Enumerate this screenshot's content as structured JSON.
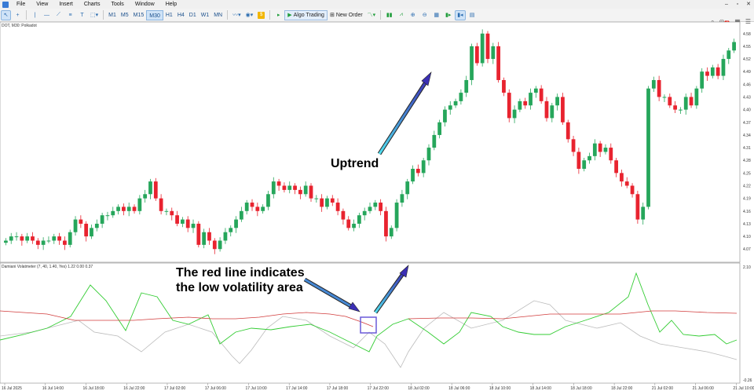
{
  "menu": [
    "File",
    "View",
    "Insert",
    "Charts",
    "Tools",
    "Window",
    "Help"
  ],
  "toolbar": {
    "timeframes": [
      "M1",
      "M5",
      "M15",
      "M30",
      "H1",
      "H4",
      "D1",
      "W1",
      "MN"
    ],
    "active_timeframe": "M30",
    "algo_trading": "Algo Trading",
    "new_order": "New Order",
    "notification_count": "1"
  },
  "chart": {
    "symbol_label": "DOT, M30:  Polkadot",
    "indicator_label": "Damiani Volatmeter (7, 40, 1.40, Yes) 1.22 0.00 0.37",
    "price_ticks": [
      "4.58",
      "4.55",
      "4.52",
      "4.49",
      "4.46",
      "4.43",
      "4.40",
      "4.37",
      "4.34",
      "4.31",
      "4.28",
      "4.25",
      "4.22",
      "4.19",
      "4.16",
      "4.13",
      "4.10",
      "4.07"
    ],
    "ind_ticks": [
      "2.10",
      "-0.26"
    ],
    "time_ticks": [
      "16 Jul 2025",
      "16 Jul 14:00",
      "16 Jul 18:00",
      "16 Jul 22:00",
      "17 Jul 02:00",
      "17 Jul 06:00",
      "17 Jul 10:00",
      "17 Jul 14:00",
      "17 Jul 18:00",
      "17 Jul 22:00",
      "18 Jul 02:00",
      "18 Jul 06:00",
      "18 Jul 10:00",
      "18 Jul 14:00",
      "18 Jul 18:00",
      "18 Jul 22:00",
      "21 Jul 02:00",
      "21 Jul 06:00",
      "21 Jul 10:00"
    ]
  },
  "annotations": {
    "uptrend": "Uptrend",
    "note_line1": "The red line indicates",
    "note_line2": "the low volatility area"
  },
  "colors": {
    "bull": "#26a65b",
    "bear": "#e8232f",
    "greenline": "#33cc33",
    "redline": "#d13b3b",
    "grayline": "#bbbbbb"
  },
  "chart_data": {
    "type": "candlestick",
    "series": [
      {
        "name": "price",
        "values": [
          4.09,
          4.1,
          4.1,
          4.09,
          4.1,
          4.09,
          4.08,
          4.09,
          4.09,
          4.1,
          4.09,
          4.08,
          4.11,
          4.14,
          4.13,
          4.1,
          4.12,
          4.13,
          4.15,
          4.15,
          4.16,
          4.17,
          4.16,
          4.17,
          4.16,
          4.19,
          4.2,
          4.23,
          4.19,
          4.16,
          4.16,
          4.15,
          4.13,
          4.14,
          4.12,
          4.13,
          4.08,
          4.11,
          4.09,
          4.07,
          4.09,
          4.11,
          4.12,
          4.14,
          4.16,
          4.18,
          4.17,
          4.16,
          4.17,
          4.2,
          4.23,
          4.22,
          4.21,
          4.22,
          4.21,
          4.2,
          4.22,
          4.19,
          4.19,
          4.17,
          4.19,
          4.18,
          4.16,
          4.14,
          4.12,
          4.13,
          4.15,
          4.16,
          4.17,
          4.18,
          4.16,
          4.1,
          4.12,
          4.18,
          4.2,
          4.23,
          4.26,
          4.25,
          4.28,
          4.31,
          4.34,
          4.37,
          4.4,
          4.41,
          4.42,
          4.44,
          4.47,
          4.55,
          4.51,
          4.58,
          4.52,
          4.55,
          4.47,
          4.44,
          4.38,
          4.4,
          4.42,
          4.41,
          4.44,
          4.45,
          4.42,
          4.38,
          4.41,
          4.43,
          4.37,
          4.33,
          4.3,
          4.26,
          4.28,
          4.29,
          4.32,
          4.3,
          4.31,
          4.28,
          4.25,
          4.23,
          4.22,
          4.2,
          4.14,
          4.17,
          4.45,
          4.47,
          4.43,
          4.43,
          4.41,
          4.4,
          4.4,
          4.43,
          4.41,
          4.45,
          4.49,
          4.48,
          4.5,
          4.48,
          4.52,
          4.54,
          4.56
        ]
      }
    ]
  }
}
